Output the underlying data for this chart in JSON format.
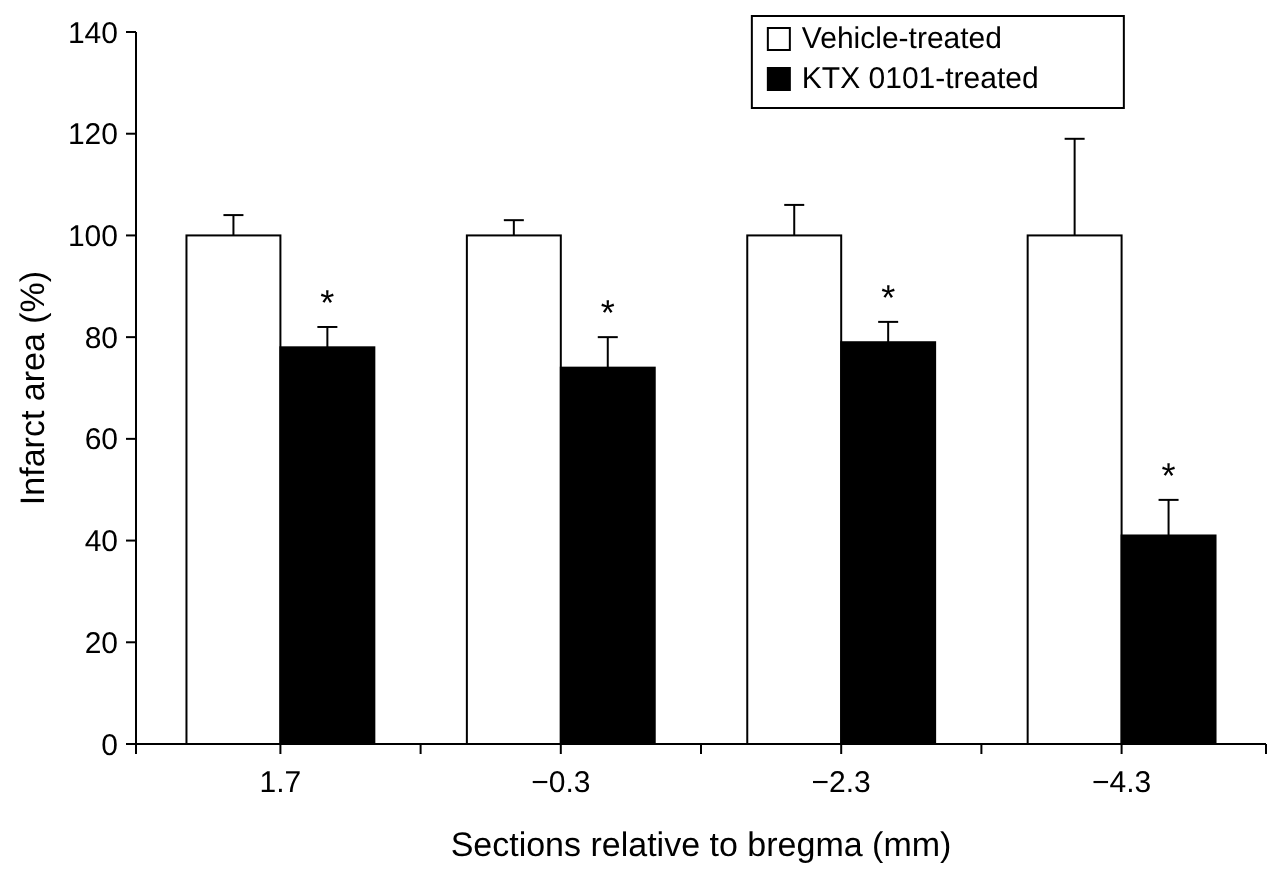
{
  "chart_data": {
    "type": "bar",
    "xlabel": "Sections relative to bregma (mm)",
    "ylabel": "Infarct area (%)",
    "categories": [
      "1.7",
      "−0.3",
      "−2.3",
      "−4.3"
    ],
    "series": [
      {
        "name": "Vehicle-treated",
        "color": "#ffffff",
        "values": [
          100,
          100,
          100,
          100
        ],
        "errors": [
          [
            100,
            104
          ],
          [
            100,
            103
          ],
          [
            100,
            106
          ],
          [
            100,
            119
          ]
        ]
      },
      {
        "name": "KTX 0101-treated",
        "color": "#000000",
        "values": [
          78,
          74,
          79,
          41
        ],
        "errors": [
          [
            78,
            82
          ],
          [
            74,
            80
          ],
          [
            79,
            83
          ],
          [
            41,
            48
          ]
        ]
      }
    ],
    "ylim": [
      0,
      140
    ],
    "yticks": [
      0,
      20,
      40,
      60,
      80,
      100,
      120,
      140
    ],
    "legend": "top right",
    "grid": false,
    "annotations": [
      {
        "text": "*",
        "x": "1.7",
        "y": 82
      },
      {
        "text": "*",
        "x": "−0.3",
        "y": 80
      },
      {
        "text": "*",
        "x": "−2.3",
        "y": 83
      },
      {
        "text": "*",
        "x": "−4.3",
        "y": 48
      }
    ]
  }
}
